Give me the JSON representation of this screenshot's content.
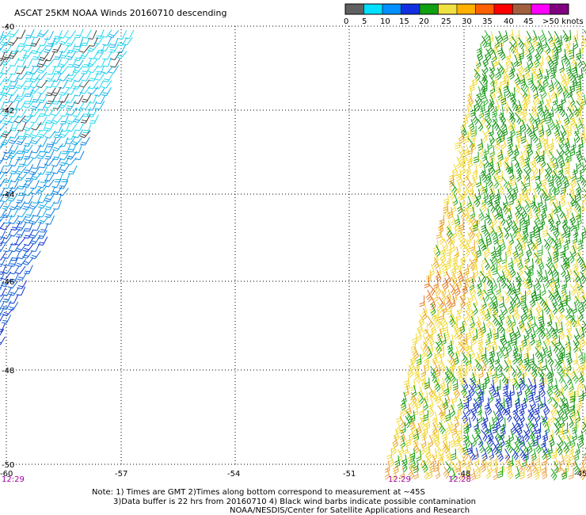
{
  "title": "ASCAT 25KM NOAA Winds 20160710 descending",
  "legend": {
    "labels": [
      "0",
      "5",
      "10",
      "15",
      "20",
      "25",
      "30",
      "35",
      "40",
      "45",
      ">50 knots"
    ],
    "colors": [
      "#606060",
      "#00e0ff",
      "#0090ff",
      "#1030e0",
      "#10a010",
      "#f0e040",
      "#ffb000",
      "#ff6000",
      "#ff0000",
      "#a06040",
      "#ff00ff",
      "#800080"
    ]
  },
  "lat_labels": [
    "-40",
    "-42",
    "-44",
    "-46",
    "-48",
    "-50"
  ],
  "lon_labels": [
    "-60",
    "-57",
    "-54",
    "-51",
    "-48",
    "-45"
  ],
  "times": {
    "left": "12:29",
    "right_a": "12:29",
    "right_b": "12:28"
  },
  "notes": {
    "line1": "Note: 1) Times are GMT 2)Times along bottom correspond to measurement at ~45S",
    "line2": "3)Data buffer is 22 hrs from 20160710 4) Black wind barbs indicate possible contamination",
    "line3": "NOAA/NESDIS/Center for Satellite Applications and Research"
  }
}
